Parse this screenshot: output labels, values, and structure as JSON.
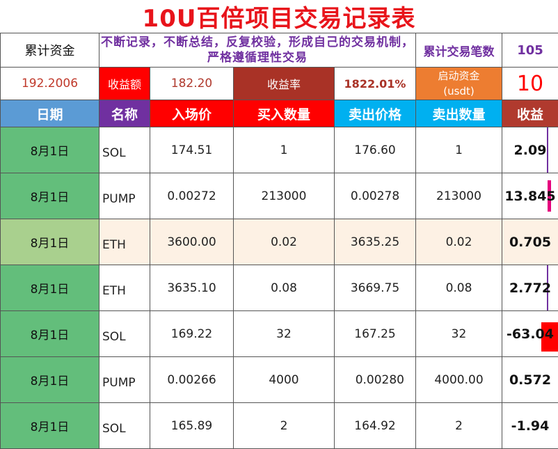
{
  "title": "10U百倍项目交易记录表",
  "summary": {
    "total_funds_label": "累计资金",
    "total_funds_value": "192.2006",
    "motto": "不断记录，不断总结，反复校验，形成自己的交易机制，严格遵循理性交易",
    "trade_count_label": "累计交易笔数",
    "trade_count_value": "105",
    "profit_amount_label": "收益额",
    "profit_amount_value": "182.20",
    "profit_rate_label": "收益率",
    "profit_rate_value": "1822.01%",
    "start_funds_label": "启动资金\n(usdt)",
    "start_funds_value": "10"
  },
  "headers": [
    "日期",
    "名称",
    "入场价",
    "买入数量",
    "卖出价格",
    "卖出数量",
    "收益"
  ],
  "rows": [
    {
      "date": "8月1日",
      "name": "SOL",
      "entry": "174.51",
      "buy_qty": "1",
      "sell_price": "176.60",
      "sell_qty": "1",
      "profit": "2.09"
    },
    {
      "date": "8月1日",
      "name": "PUMP",
      "entry": "0.00272",
      "buy_qty": "213000",
      "sell_price": "0.00278",
      "sell_qty": "213000",
      "profit": "13.845"
    },
    {
      "date": "8月1日",
      "name": "ETH",
      "entry": "3600.00",
      "buy_qty": "0.02",
      "sell_price": "3635.25",
      "sell_qty": "0.02",
      "profit": "0.705"
    },
    {
      "date": "8月1日",
      "name": "ETH",
      "entry": "3635.10",
      "buy_qty": "0.08",
      "sell_price": "3669.75",
      "sell_qty": "0.08",
      "profit": "2.772"
    },
    {
      "date": "8月1日",
      "name": "SOL",
      "entry": "169.22",
      "buy_qty": "32",
      "sell_price": "167.25",
      "sell_qty": "32",
      "profit": "-63.04"
    },
    {
      "date": "8月1日",
      "name": "PUMP",
      "entry": "0.00266",
      "buy_qty": "4000",
      "sell_price": "0.00280",
      "sell_qty": "4000.00",
      "profit": "0.572"
    },
    {
      "date": "8月1日",
      "name": "SOL",
      "entry": "165.89",
      "buy_qty": "2",
      "sell_price": "164.92",
      "sell_qty": "2",
      "profit": "-1.94"
    }
  ],
  "colors": {
    "title": "#e8141b",
    "header_date": "#5b9bd5",
    "header_name": "#7030a0",
    "header_red": "#ff0000",
    "header_teal": "#00b0f0",
    "header_brown": "#b03a2e",
    "date_cell": "#63be7b",
    "loss_bar": "#ff0000",
    "gain_bar": "#e6007e"
  }
}
